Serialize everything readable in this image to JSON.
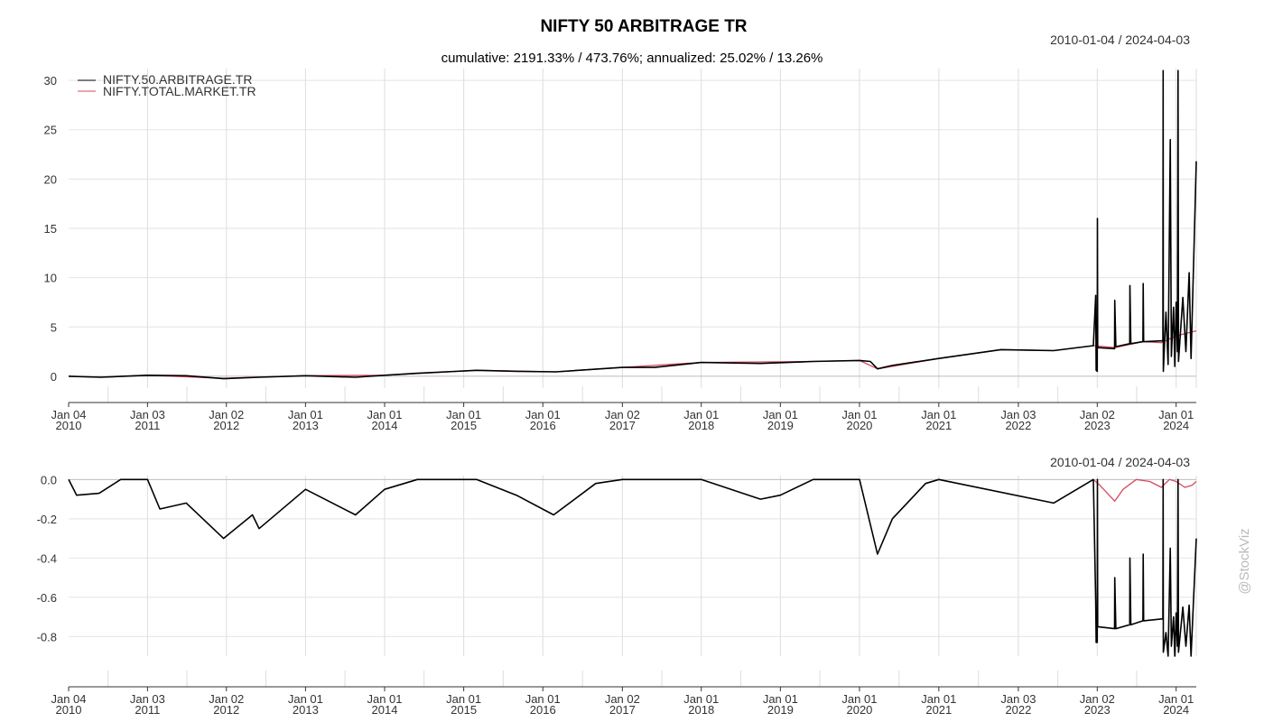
{
  "chart_data": [
    {
      "type": "line",
      "title": "NIFTY 50 ARBITRAGE TR",
      "subtitle": "cumulative: 2191.33% / 473.76%; annualized: 25.02% / 13.26%",
      "date_range": "2010-01-04 / 2024-04-03",
      "x_ticks": [
        {
          "date": "2010-01-04",
          "top": "Jan 04",
          "bottom": "2010"
        },
        {
          "date": "2011-01-03",
          "top": "Jan 03",
          "bottom": "2011"
        },
        {
          "date": "2012-01-02",
          "top": "Jan 02",
          "bottom": "2012"
        },
        {
          "date": "2013-01-01",
          "top": "Jan 01",
          "bottom": "2013"
        },
        {
          "date": "2014-01-01",
          "top": "Jan 01",
          "bottom": "2014"
        },
        {
          "date": "2015-01-01",
          "top": "Jan 01",
          "bottom": "2015"
        },
        {
          "date": "2016-01-01",
          "top": "Jan 01",
          "bottom": "2016"
        },
        {
          "date": "2017-01-02",
          "top": "Jan 02",
          "bottom": "2017"
        },
        {
          "date": "2018-01-01",
          "top": "Jan 01",
          "bottom": "2018"
        },
        {
          "date": "2019-01-01",
          "top": "Jan 01",
          "bottom": "2019"
        },
        {
          "date": "2020-01-01",
          "top": "Jan 01",
          "bottom": "2020"
        },
        {
          "date": "2021-01-01",
          "top": "Jan 01",
          "bottom": "2021"
        },
        {
          "date": "2022-01-03",
          "top": "Jan 03",
          "bottom": "2022"
        },
        {
          "date": "2023-01-02",
          "top": "Jan 02",
          "bottom": "2023"
        },
        {
          "date": "2024-01-01",
          "top": "Jan 01",
          "bottom": "2024"
        }
      ],
      "x_range": [
        "2010-01-04",
        "2024-04-03"
      ],
      "y_ticks": [
        "0",
        "5",
        "10",
        "15",
        "20",
        "25",
        "30"
      ],
      "ylim": [
        -1.2,
        31.2
      ],
      "legend_position": "top-left",
      "series": [
        {
          "name": "NIFTY.50.ARBITRAGE.TR",
          "color": "#000000",
          "points": [
            [
              "2010-01-04",
              0.0
            ],
            [
              "2010-06-01",
              -0.1
            ],
            [
              "2011-01-03",
              0.1
            ],
            [
              "2011-07-01",
              0.05
            ],
            [
              "2011-12-20",
              -0.25
            ],
            [
              "2012-06-01",
              -0.1
            ],
            [
              "2013-01-01",
              0.05
            ],
            [
              "2013-08-20",
              -0.1
            ],
            [
              "2014-01-01",
              0.1
            ],
            [
              "2014-06-01",
              0.3
            ],
            [
              "2015-03-01",
              0.6
            ],
            [
              "2015-09-01",
              0.5
            ],
            [
              "2016-03-01",
              0.45
            ],
            [
              "2017-01-02",
              0.9
            ],
            [
              "2017-06-01",
              0.9
            ],
            [
              "2018-01-01",
              1.4
            ],
            [
              "2018-10-01",
              1.3
            ],
            [
              "2019-06-01",
              1.5
            ],
            [
              "2020-01-01",
              1.6
            ],
            [
              "2020-02-20",
              1.5
            ],
            [
              "2020-03-24",
              0.75
            ],
            [
              "2020-06-01",
              1.1
            ],
            [
              "2021-01-01",
              1.8
            ],
            [
              "2021-10-15",
              2.7
            ],
            [
              "2022-06-15",
              2.6
            ],
            [
              "2022-12-15",
              3.1
            ],
            [
              "2022-12-26",
              8.2
            ],
            [
              "2022-12-28",
              0.6
            ],
            [
              "2023-01-02",
              0.5
            ],
            [
              "2023-01-03",
              16.0
            ],
            [
              "2023-01-04",
              2.9
            ],
            [
              "2023-03-23",
              2.8
            ],
            [
              "2023-03-24",
              7.7
            ],
            [
              "2023-03-29",
              3.0
            ],
            [
              "2023-06-01",
              3.3
            ],
            [
              "2023-06-02",
              9.2
            ],
            [
              "2023-06-06",
              3.3
            ],
            [
              "2023-08-01",
              3.5
            ],
            [
              "2023-08-02",
              9.4
            ],
            [
              "2023-08-04",
              3.5
            ],
            [
              "2023-11-01",
              3.6
            ],
            [
              "2023-11-02",
              31.0
            ],
            [
              "2023-11-03",
              0.5
            ],
            [
              "2023-11-15",
              6.5
            ],
            [
              "2023-11-25",
              1.2
            ],
            [
              "2023-12-05",
              24.0
            ],
            [
              "2023-12-10",
              2.0
            ],
            [
              "2023-12-20",
              7.0
            ],
            [
              "2023-12-26",
              1.0
            ],
            [
              "2024-01-01",
              7.5
            ],
            [
              "2024-01-07",
              2.5
            ],
            [
              "2024-01-10",
              31.0
            ],
            [
              "2024-01-12",
              1.5
            ],
            [
              "2024-02-01",
              8.0
            ],
            [
              "2024-02-15",
              2.5
            ],
            [
              "2024-03-01",
              10.5
            ],
            [
              "2024-03-10",
              1.8
            ],
            [
              "2024-03-20",
              10.0
            ],
            [
              "2024-04-03",
              21.8
            ]
          ]
        },
        {
          "name": "NIFTY.TOTAL.MARKET.TR",
          "color": "#d64a5e",
          "points": [
            [
              "2010-01-04",
              0.0
            ],
            [
              "2010-06-01",
              -0.1
            ],
            [
              "2011-01-03",
              0.1
            ],
            [
              "2011-12-20",
              -0.2
            ],
            [
              "2013-01-01",
              0.05
            ],
            [
              "2014-01-01",
              0.1
            ],
            [
              "2015-03-01",
              0.6
            ],
            [
              "2016-03-01",
              0.45
            ],
            [
              "2017-01-02",
              0.9
            ],
            [
              "2018-01-01",
              1.4
            ],
            [
              "2019-06-01",
              1.5
            ],
            [
              "2020-01-01",
              1.6
            ],
            [
              "2020-03-24",
              0.75
            ],
            [
              "2021-01-01",
              1.8
            ],
            [
              "2021-10-15",
              2.7
            ],
            [
              "2022-06-15",
              2.6
            ],
            [
              "2022-12-15",
              3.1
            ],
            [
              "2023-03-24",
              2.9
            ],
            [
              "2023-08-01",
              3.5
            ],
            [
              "2023-10-25",
              3.4
            ],
            [
              "2024-01-01",
              4.1
            ],
            [
              "2024-04-03",
              4.6
            ]
          ]
        }
      ]
    },
    {
      "type": "line",
      "date_range": "2010-01-04 / 2024-04-03",
      "x_range": [
        "2010-01-04",
        "2024-04-03"
      ],
      "y_ticks": [
        "0.0",
        "-0.2",
        "-0.4",
        "-0.6",
        "-0.8"
      ],
      "ylim": [
        -0.9,
        0.02
      ],
      "series": [
        {
          "name": "NIFTY.50.ARBITRAGE.TR",
          "color": "#000000",
          "points": [
            [
              "2010-01-04",
              0.0
            ],
            [
              "2010-02-10",
              -0.08
            ],
            [
              "2010-05-25",
              -0.07
            ],
            [
              "2010-09-01",
              0.0
            ],
            [
              "2011-01-03",
              0.0
            ],
            [
              "2011-03-01",
              -0.15
            ],
            [
              "2011-07-01",
              -0.12
            ],
            [
              "2011-12-20",
              -0.3
            ],
            [
              "2012-05-01",
              -0.18
            ],
            [
              "2012-06-01",
              -0.25
            ],
            [
              "2013-01-01",
              -0.05
            ],
            [
              "2013-08-20",
              -0.18
            ],
            [
              "2014-01-01",
              -0.05
            ],
            [
              "2014-06-01",
              0.0
            ],
            [
              "2015-03-01",
              0.0
            ],
            [
              "2015-09-01",
              -0.08
            ],
            [
              "2016-02-20",
              -0.18
            ],
            [
              "2016-09-01",
              -0.02
            ],
            [
              "2017-01-02",
              0.0
            ],
            [
              "2018-01-01",
              0.0
            ],
            [
              "2018-10-01",
              -0.1
            ],
            [
              "2019-01-01",
              -0.08
            ],
            [
              "2019-06-01",
              0.0
            ],
            [
              "2020-01-01",
              0.0
            ],
            [
              "2020-03-24",
              -0.38
            ],
            [
              "2020-06-01",
              -0.2
            ],
            [
              "2020-11-01",
              -0.02
            ],
            [
              "2021-01-01",
              0.0
            ],
            [
              "2022-06-15",
              -0.12
            ],
            [
              "2022-12-15",
              0.0
            ],
            [
              "2022-12-26",
              -0.62
            ],
            [
              "2022-12-28",
              -0.83
            ],
            [
              "2023-01-02",
              -0.83
            ],
            [
              "2023-01-03",
              0.0
            ],
            [
              "2023-01-04",
              -0.75
            ],
            [
              "2023-03-23",
              -0.76
            ],
            [
              "2023-03-24",
              -0.5
            ],
            [
              "2023-03-29",
              -0.76
            ],
            [
              "2023-06-01",
              -0.74
            ],
            [
              "2023-06-02",
              -0.4
            ],
            [
              "2023-06-06",
              -0.74
            ],
            [
              "2023-08-01",
              -0.72
            ],
            [
              "2023-08-02",
              -0.38
            ],
            [
              "2023-08-04",
              -0.72
            ],
            [
              "2023-11-01",
              -0.71
            ],
            [
              "2023-11-02",
              0.0
            ],
            [
              "2023-11-03",
              -0.88
            ],
            [
              "2023-11-15",
              -0.78
            ],
            [
              "2023-11-25",
              -0.9
            ],
            [
              "2023-12-05",
              -0.35
            ],
            [
              "2023-12-10",
              -0.85
            ],
            [
              "2023-12-20",
              -0.7
            ],
            [
              "2023-12-26",
              -0.9
            ],
            [
              "2024-01-01",
              -0.68
            ],
            [
              "2024-01-07",
              -0.85
            ],
            [
              "2024-01-10",
              0.0
            ],
            [
              "2024-01-12",
              -0.88
            ],
            [
              "2024-02-01",
              -0.65
            ],
            [
              "2024-02-15",
              -0.85
            ],
            [
              "2024-03-01",
              -0.64
            ],
            [
              "2024-03-10",
              -0.9
            ],
            [
              "2024-03-20",
              -0.65
            ],
            [
              "2024-04-03",
              -0.3
            ]
          ]
        },
        {
          "name": "NIFTY.TOTAL.MARKET.TR",
          "color": "#d64a5e",
          "points": [
            [
              "2022-12-15",
              0.0
            ],
            [
              "2023-01-15",
              -0.03
            ],
            [
              "2023-03-24",
              -0.11
            ],
            [
              "2023-05-01",
              -0.05
            ],
            [
              "2023-07-01",
              0.0
            ],
            [
              "2023-09-01",
              -0.01
            ],
            [
              "2023-10-25",
              -0.04
            ],
            [
              "2023-12-01",
              0.0
            ],
            [
              "2024-01-01",
              -0.01
            ],
            [
              "2024-02-10",
              -0.04
            ],
            [
              "2024-03-13",
              -0.03
            ],
            [
              "2024-04-03",
              -0.01
            ]
          ]
        }
      ]
    }
  ],
  "watermark": "@StockViz"
}
